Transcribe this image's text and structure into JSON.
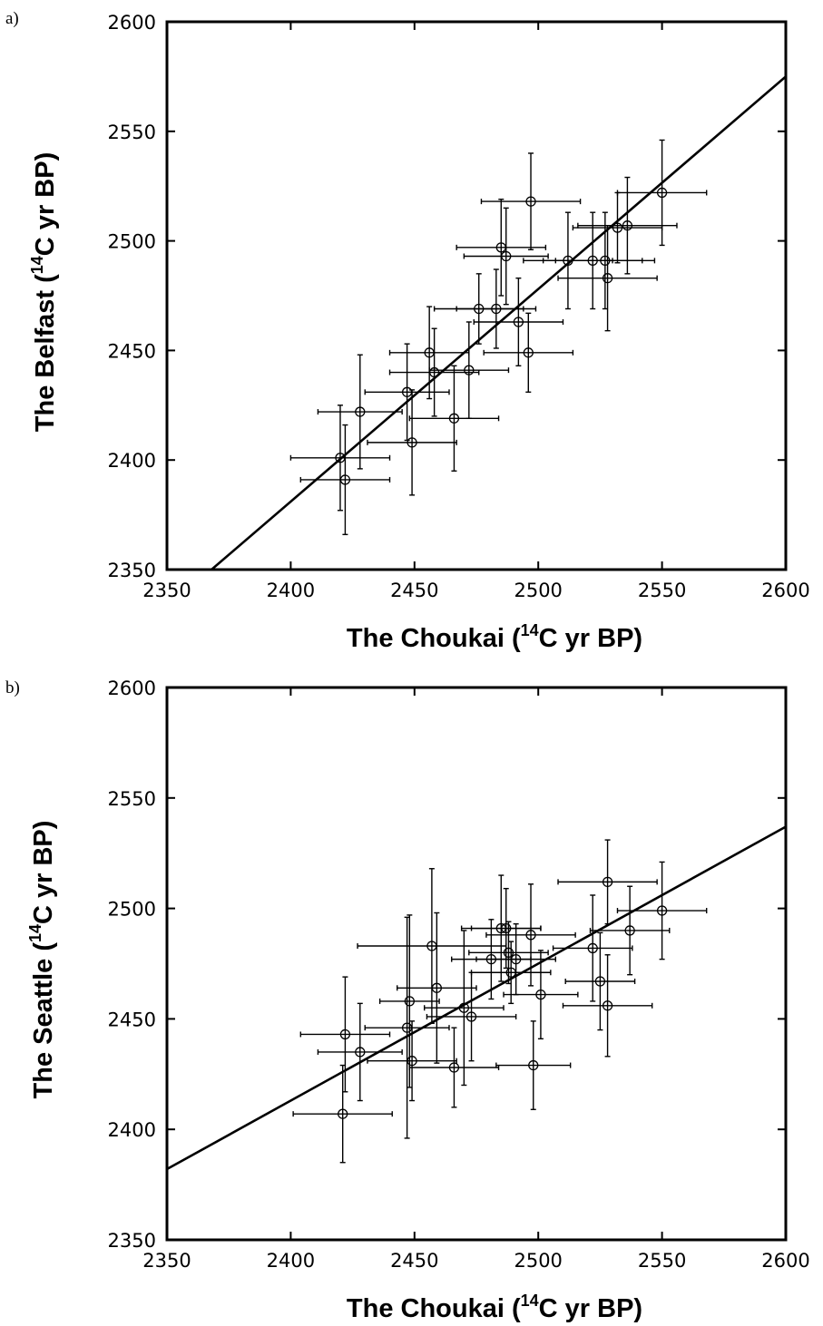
{
  "chart_data": [
    {
      "type": "scatter",
      "panel_label": "a)",
      "xlabel": {
        "prefix": "The Choukai (",
        "sup": "14",
        "suffix": "C yr BP)"
      },
      "ylabel": {
        "prefix": "The Belfast (",
        "sup": "14",
        "suffix": "C yr BP)"
      },
      "xlim": [
        2350,
        2600
      ],
      "ylim": [
        2350,
        2600
      ],
      "x_ticks": [
        "2350",
        "2400",
        "2450",
        "2500",
        "2550",
        "2600"
      ],
      "y_ticks": [
        "2350",
        "2400",
        "2450",
        "2500",
        "2550",
        "2600"
      ],
      "grid": false,
      "fit_line": {
        "x": [
          2368,
          2600
        ],
        "y": [
          2350,
          2575
        ]
      },
      "points": [
        {
          "x": 2420,
          "y": 2401,
          "xerr": 20,
          "yerr": 24
        },
        {
          "x": 2422,
          "y": 2391,
          "xerr": 18,
          "yerr": 25
        },
        {
          "x": 2428,
          "y": 2422,
          "xerr": 17,
          "yerr": 26
        },
        {
          "x": 2447,
          "y": 2431,
          "xerr": 17,
          "yerr": 22
        },
        {
          "x": 2449,
          "y": 2408,
          "xerr": 18,
          "yerr": 24
        },
        {
          "x": 2456,
          "y": 2449,
          "xerr": 16,
          "yerr": 21
        },
        {
          "x": 2458,
          "y": 2440,
          "xerr": 18,
          "yerr": 20
        },
        {
          "x": 2466,
          "y": 2419,
          "xerr": 18,
          "yerr": 24
        },
        {
          "x": 2472,
          "y": 2441,
          "xerr": 16,
          "yerr": 22
        },
        {
          "x": 2476,
          "y": 2469,
          "xerr": 18,
          "yerr": 16
        },
        {
          "x": 2483,
          "y": 2469,
          "xerr": 16,
          "yerr": 18
        },
        {
          "x": 2485,
          "y": 2497,
          "xerr": 18,
          "yerr": 22
        },
        {
          "x": 2487,
          "y": 2493,
          "xerr": 17,
          "yerr": 22
        },
        {
          "x": 2492,
          "y": 2463,
          "xerr": 18,
          "yerr": 20
        },
        {
          "x": 2496,
          "y": 2449,
          "xerr": 18,
          "yerr": 18
        },
        {
          "x": 2497,
          "y": 2518,
          "xerr": 20,
          "yerr": 22
        },
        {
          "x": 2512,
          "y": 2491,
          "xerr": 18,
          "yerr": 22
        },
        {
          "x": 2522,
          "y": 2491,
          "xerr": 20,
          "yerr": 22
        },
        {
          "x": 2527,
          "y": 2491,
          "xerr": 20,
          "yerr": 22
        },
        {
          "x": 2528,
          "y": 2483,
          "xerr": 20,
          "yerr": 24
        },
        {
          "x": 2532,
          "y": 2506,
          "xerr": 18,
          "yerr": 16
        },
        {
          "x": 2536,
          "y": 2507,
          "xerr": 20,
          "yerr": 22
        },
        {
          "x": 2550,
          "y": 2522,
          "xerr": 18,
          "yerr": 24
        }
      ]
    },
    {
      "type": "scatter",
      "panel_label": "b)",
      "xlabel": {
        "prefix": "The Choukai (",
        "sup": "14",
        "suffix": "C yr BP)"
      },
      "ylabel": {
        "prefix": "The Seattle (",
        "sup": "14",
        "suffix": "C yr BP)"
      },
      "xlim": [
        2350,
        2600
      ],
      "ylim": [
        2350,
        2600
      ],
      "x_ticks": [
        "2350",
        "2400",
        "2450",
        "2500",
        "2550",
        "2600"
      ],
      "y_ticks": [
        "2350",
        "2400",
        "2450",
        "2500",
        "2550",
        "2600"
      ],
      "grid": false,
      "fit_line": {
        "x": [
          2350,
          2600
        ],
        "y": [
          2382,
          2537
        ]
      },
      "points": [
        {
          "x": 2421,
          "y": 2407,
          "xerr": 20,
          "yerr": 22
        },
        {
          "x": 2422,
          "y": 2443,
          "xerr": 18,
          "yerr": 26
        },
        {
          "x": 2428,
          "y": 2435,
          "xerr": 17,
          "yerr": 22
        },
        {
          "x": 2447,
          "y": 2446,
          "xerr": 17,
          "yerr": 50
        },
        {
          "x": 2448,
          "y": 2458,
          "xerr": 12,
          "yerr": 39
        },
        {
          "x": 2449,
          "y": 2431,
          "xerr": 18,
          "yerr": 18
        },
        {
          "x": 2457,
          "y": 2483,
          "xerr": 30,
          "yerr": 35
        },
        {
          "x": 2459,
          "y": 2464,
          "xerr": 16,
          "yerr": 34
        },
        {
          "x": 2466,
          "y": 2428,
          "xerr": 18,
          "yerr": 18
        },
        {
          "x": 2470,
          "y": 2455,
          "xerr": 16,
          "yerr": 35
        },
        {
          "x": 2473,
          "y": 2451,
          "xerr": 18,
          "yerr": 20
        },
        {
          "x": 2481,
          "y": 2477,
          "xerr": 16,
          "yerr": 18
        },
        {
          "x": 2485,
          "y": 2491,
          "xerr": 16,
          "yerr": 24
        },
        {
          "x": 2487,
          "y": 2491,
          "xerr": 14,
          "yerr": 18
        },
        {
          "x": 2488,
          "y": 2480,
          "xerr": 16,
          "yerr": 14
        },
        {
          "x": 2489,
          "y": 2471,
          "xerr": 16,
          "yerr": 14
        },
        {
          "x": 2491,
          "y": 2477,
          "xerr": 16,
          "yerr": 16
        },
        {
          "x": 2497,
          "y": 2488,
          "xerr": 18,
          "yerr": 23
        },
        {
          "x": 2498,
          "y": 2429,
          "xerr": 15,
          "yerr": 20
        },
        {
          "x": 2501,
          "y": 2461,
          "xerr": 15,
          "yerr": 20
        },
        {
          "x": 2522,
          "y": 2482,
          "xerr": 16,
          "yerr": 24
        },
        {
          "x": 2525,
          "y": 2467,
          "xerr": 14,
          "yerr": 22
        },
        {
          "x": 2528,
          "y": 2512,
          "xerr": 20,
          "yerr": 19
        },
        {
          "x": 2528,
          "y": 2456,
          "xerr": 18,
          "yerr": 23
        },
        {
          "x": 2537,
          "y": 2490,
          "xerr": 16,
          "yerr": 20
        },
        {
          "x": 2550,
          "y": 2499,
          "xerr": 18,
          "yerr": 22
        }
      ]
    }
  ]
}
